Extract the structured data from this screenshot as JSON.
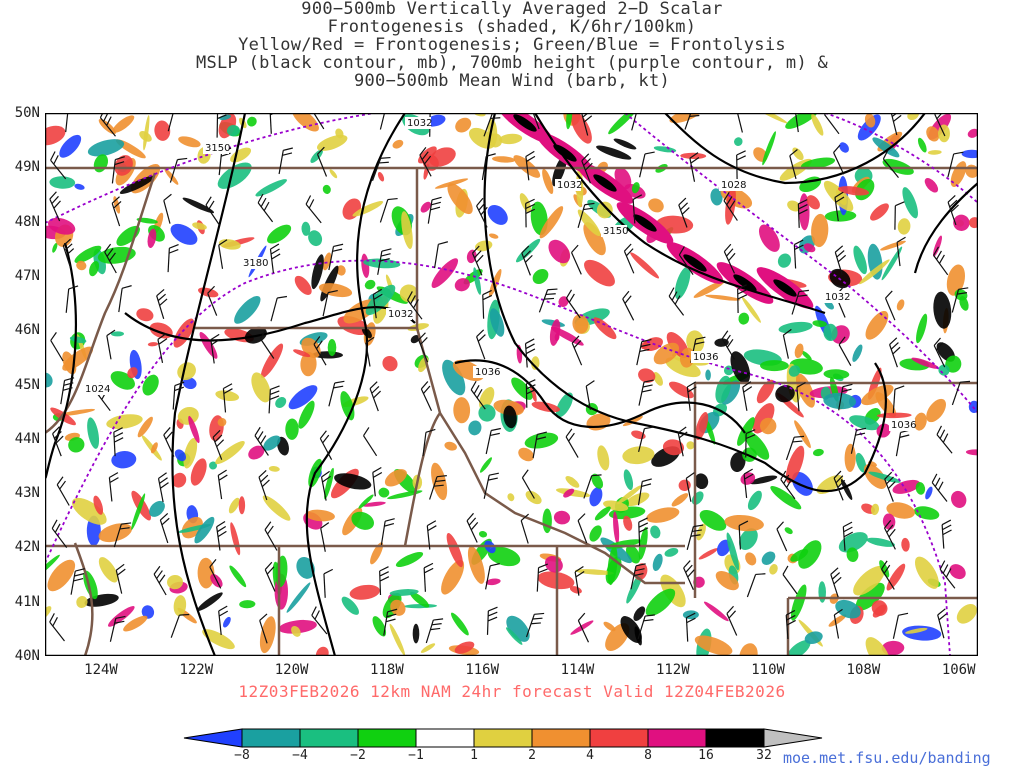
{
  "title_lines": [
    "900−500mb Vertically Averaged 2−D Scalar",
    "Frontogenesis (shaded, K/6hr/100km)",
    "Yellow/Red = Frontogenesis;  Green/Blue = Frontolysis",
    "MSLP (black contour, mb), 700mb height (purple contour, m) &",
    "900−500mb Mean Wind (barb, kt)"
  ],
  "valid_line": "12Z03FEB2026 12km NAM 24hr forecast Valid 12Z04FEB2026",
  "credit": "moe.met.fsu.edu/banding",
  "axes": {
    "lat_labels": [
      "50N",
      "49N",
      "48N",
      "47N",
      "46N",
      "45N",
      "44N",
      "43N",
      "42N",
      "41N",
      "40N"
    ],
    "lon_labels": [
      "124W",
      "122W",
      "120W",
      "118W",
      "116W",
      "114W",
      "112W",
      "110W",
      "108W",
      "106W"
    ]
  },
  "mslp_labels": [
    "1032",
    "1032",
    "1028",
    "1032",
    "1036",
    "1036",
    "1036",
    "1032",
    "1024"
  ],
  "height_labels": [
    "3150",
    "3180",
    "3150"
  ],
  "colorbar": {
    "labels": [
      "−8",
      "−4",
      "−2",
      "−1",
      "1",
      "2",
      "4",
      "8",
      "16",
      "32"
    ],
    "colors": [
      "#2040ff",
      "#1aa0a0",
      "#1abf80",
      "#10d010",
      "#ffffff",
      "#e0d040",
      "#f09030",
      "#f04040",
      "#e01080",
      "#000000",
      "#c0c0c0"
    ]
  },
  "colors": {
    "mslp": "#000000",
    "height": "#9900cc",
    "border": "#7a5a4a",
    "title": "#333333",
    "valid": "#ff6a6a",
    "credit": "#4a6fd8"
  }
}
